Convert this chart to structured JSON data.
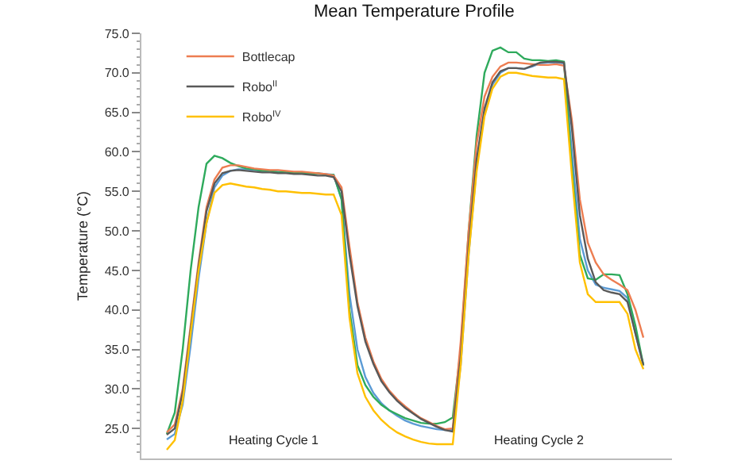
{
  "chart_data": {
    "type": "line",
    "title": "Mean Temperature Profile",
    "ylabel": "Temperature (°C)",
    "categories": [
      null,
      null,
      null,
      null,
      null,
      null,
      null,
      null,
      null,
      null,
      null,
      null,
      null,
      null,
      null,
      null,
      null,
      null,
      null,
      null,
      null,
      null,
      null,
      null,
      null,
      null,
      null,
      null,
      null,
      null,
      null,
      null,
      null,
      null,
      null,
      null,
      null,
      null,
      null,
      null,
      null,
      null,
      null,
      null,
      null,
      null,
      null,
      null,
      null,
      null,
      null,
      null,
      null,
      null,
      null,
      null,
      null,
      null,
      null,
      null,
      null
    ],
    "series": [
      {
        "color": "#5b9bd5",
        "values": [
          23.6,
          24.3,
          28,
          35.5,
          44,
          51,
          55.5,
          57,
          57.6,
          57.8,
          57.8,
          57.7,
          57.6,
          57.6,
          57.5,
          57.5,
          57.4,
          57.4,
          57.3,
          57.3,
          57.2,
          57.1,
          54,
          42,
          35,
          31.5,
          29.5,
          28.2,
          27.3,
          26.6,
          26,
          25.6,
          25.3,
          25.1,
          24.9,
          24.8,
          24.8,
          33,
          47,
          58,
          65,
          68.5,
          70,
          70.6,
          70.6,
          70.5,
          70.8,
          71.2,
          71.3,
          71.3,
          71.2,
          60,
          49,
          45,
          43.2,
          42.8,
          42.6,
          42.4,
          41.5,
          37,
          33
        ]
      },
      {
        "color": "#2eaa5c",
        "values": [
          24.3,
          27,
          35,
          45,
          53,
          58.5,
          59.5,
          59.2,
          58.6,
          58.2,
          57.9,
          57.8,
          57.6,
          57.6,
          57.4,
          57.5,
          57.3,
          57.4,
          57.2,
          57.3,
          57.1,
          57.1,
          54,
          40,
          33,
          30.5,
          29,
          28,
          27.3,
          26.8,
          26.3,
          26,
          25.7,
          25.6,
          25.6,
          25.8,
          26.4,
          35,
          50,
          62,
          70,
          72.8,
          73.2,
          72.6,
          72.6,
          71.8,
          71.6,
          71.6,
          71.5,
          71.6,
          71.4,
          58,
          47,
          44,
          43.8,
          44.5,
          44.5,
          44.4,
          42,
          38,
          33
        ]
      },
      {
        "name": "Bottlecap",
        "color": "#ed7d51",
        "values": [
          24.5,
          25.5,
          30,
          38,
          46,
          53,
          56.5,
          58,
          58.3,
          58.3,
          58.1,
          57.9,
          57.8,
          57.7,
          57.7,
          57.6,
          57.5,
          57.5,
          57.4,
          57.3,
          57.2,
          57,
          55.5,
          48,
          41,
          36.5,
          33.5,
          31.3,
          29.8,
          28.7,
          27.8,
          27,
          26.3,
          25.8,
          25.3,
          24.9,
          25,
          36,
          50,
          61,
          67,
          69.5,
          70.8,
          71.3,
          71.3,
          71.2,
          71.1,
          71,
          71,
          71.1,
          70.9,
          64,
          54,
          48.5,
          46,
          44.5,
          43.8,
          43.2,
          42.5,
          40,
          36.5
        ]
      },
      {
        "name": "Robo$^{II}$",
        "color": "#595959",
        "values": [
          24.2,
          25,
          29.5,
          37.5,
          45.5,
          52.5,
          56,
          57.3,
          57.6,
          57.7,
          57.6,
          57.5,
          57.4,
          57.4,
          57.3,
          57.3,
          57.2,
          57.2,
          57.1,
          57,
          57,
          56.8,
          55,
          47,
          40.5,
          36,
          33.2,
          31,
          29.6,
          28.5,
          27.6,
          26.9,
          26.2,
          25.7,
          25.2,
          24.8,
          24.6,
          34,
          48,
          59,
          65.5,
          68.8,
          70.2,
          70.6,
          70.6,
          70.5,
          70.9,
          71.3,
          71.4,
          71.4,
          71.3,
          63,
          52,
          46.5,
          43.5,
          42.5,
          42.2,
          42,
          41,
          37,
          33
        ]
      },
      {
        "name": "Robo$^{IV}$",
        "color": "#ffc000",
        "values": [
          22.3,
          23.5,
          28.5,
          37,
          45,
          51,
          54.8,
          55.8,
          56,
          55.8,
          55.6,
          55.5,
          55.3,
          55.2,
          55,
          55,
          54.9,
          54.8,
          54.8,
          54.7,
          54.6,
          54.6,
          52,
          39,
          32,
          29,
          27.3,
          26.1,
          25.2,
          24.5,
          24,
          23.6,
          23.3,
          23.1,
          23,
          23,
          23,
          33,
          47,
          57.5,
          64.5,
          68,
          69.5,
          70,
          70,
          69.8,
          69.6,
          69.5,
          69.4,
          69.4,
          69.2,
          57,
          46,
          42,
          41,
          41,
          41,
          41,
          39.5,
          35,
          32.5
        ]
      }
    ],
    "ylim": [
      21.2,
      75
    ],
    "yticks": [
      {
        "value": 25,
        "label": "25.0"
      },
      {
        "value": 30,
        "label": "30.0"
      },
      {
        "value": 35,
        "label": "35.0"
      },
      {
        "value": 40,
        "label": "40.0"
      },
      {
        "value": 45,
        "label": "45.0"
      },
      {
        "value": 50,
        "label": "50.0"
      },
      {
        "value": 55,
        "label": "55.0"
      },
      {
        "value": 60,
        "label": "60.0"
      },
      {
        "value": 65,
        "label": "65.0"
      },
      {
        "value": 70,
        "label": "70.0"
      },
      {
        "value": 75,
        "label": "75.0"
      }
    ],
    "annotations": [
      "Heating Cycle 1",
      "Heating Cycle 2"
    ],
    "grid": false,
    "legend": "top left",
    "marker": "none",
    "line_style": "solid",
    "tick_labels": "y"
  }
}
